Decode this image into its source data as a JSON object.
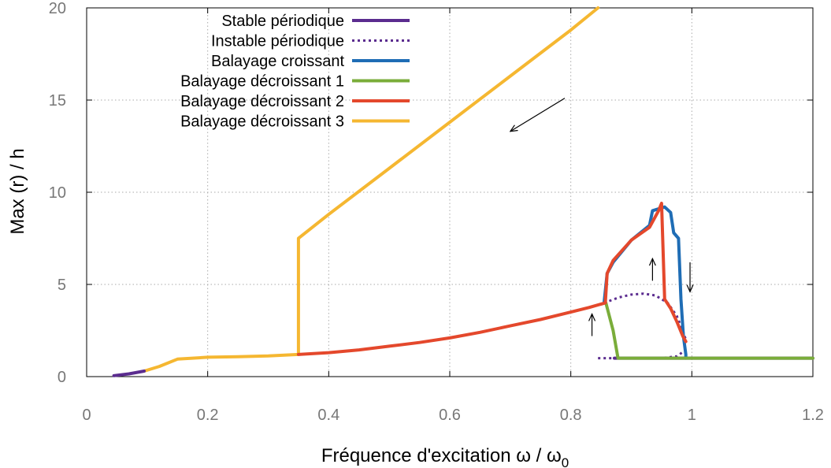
{
  "chart_data": {
    "type": "line",
    "xlabel": "Fréquence d'excitation ω / ω",
    "xlabel_sub": "0",
    "ylabel": "Max (r) / h",
    "xlim": [
      0,
      1.2
    ],
    "ylim": [
      0,
      20
    ],
    "xticks": [
      "0",
      "0.2",
      "0.4",
      "0.6",
      "0.8",
      "1",
      "1.2"
    ],
    "yticks": [
      "0",
      "5",
      "10",
      "15",
      "20"
    ],
    "grid": true,
    "legend_position": "top-left",
    "series": [
      {
        "name": "Stable périodique",
        "color": "#5b2c8f",
        "style": "solid",
        "segments": [
          [
            [
              0.045,
              0.05
            ],
            [
              0.07,
              0.15
            ],
            [
              0.095,
              0.3
            ]
          ],
          [
            [
              0.872,
              1.0
            ],
            [
              1.2,
              1.0
            ]
          ]
        ]
      },
      {
        "name": "Instable périodique",
        "color": "#5b2c8f",
        "style": "dotted",
        "segments": [
          [
            [
              0.855,
              4.0
            ],
            [
              0.88,
              4.3
            ],
            [
              0.9,
              4.45
            ],
            [
              0.92,
              4.5
            ],
            [
              0.94,
              4.4
            ],
            [
              0.96,
              4.0
            ],
            [
              0.975,
              3.3
            ],
            [
              0.985,
              2.5
            ],
            [
              0.99,
              2.0
            ]
          ],
          [
            [
              0.845,
              1.0
            ],
            [
              0.9,
              1.0
            ],
            [
              0.95,
              1.0
            ],
            [
              0.975,
              1.1
            ],
            [
              0.988,
              1.4
            ]
          ]
        ]
      },
      {
        "name": "Balayage croissant",
        "color": "#1f6db5",
        "style": "solid",
        "segments": [
          [
            [
              0.855,
              4.0
            ],
            [
              0.86,
              5.6
            ],
            [
              0.87,
              6.2
            ],
            [
              0.9,
              7.4
            ],
            [
              0.93,
              8.2
            ],
            [
              0.935,
              9.0
            ],
            [
              0.955,
              9.2
            ],
            [
              0.965,
              8.9
            ],
            [
              0.97,
              7.8
            ],
            [
              0.978,
              7.5
            ],
            [
              0.982,
              4.2
            ],
            [
              0.986,
              2.2
            ],
            [
              0.99,
              1.2
            ],
            [
              0.99,
              1.0
            ]
          ]
        ]
      },
      {
        "name": "Balayage décroissant 1",
        "color": "#7aad3a",
        "style": "solid",
        "segments": [
          [
            [
              0.858,
              4.0
            ],
            [
              0.87,
              2.5
            ],
            [
              0.878,
              1.0
            ],
            [
              1.2,
              1.0
            ]
          ]
        ]
      },
      {
        "name": "Balayage décroissant 2",
        "color": "#e4482c",
        "style": "solid",
        "segments": [
          [
            [
              0.35,
              1.2
            ],
            [
              0.4,
              1.3
            ],
            [
              0.45,
              1.45
            ],
            [
              0.5,
              1.65
            ],
            [
              0.55,
              1.85
            ],
            [
              0.6,
              2.1
            ],
            [
              0.65,
              2.4
            ],
            [
              0.7,
              2.75
            ],
            [
              0.75,
              3.1
            ],
            [
              0.8,
              3.5
            ],
            [
              0.83,
              3.75
            ],
            [
              0.857,
              4.0
            ]
          ],
          [
            [
              0.857,
              4.0
            ],
            [
              0.86,
              5.6
            ],
            [
              0.87,
              6.3
            ],
            [
              0.9,
              7.4
            ],
            [
              0.93,
              8.1
            ],
            [
              0.945,
              9.0
            ],
            [
              0.95,
              9.4
            ],
            [
              0.955,
              4.2
            ],
            [
              0.965,
              3.7
            ],
            [
              0.975,
              3.0
            ],
            [
              0.985,
              2.2
            ],
            [
              0.99,
              1.9
            ]
          ]
        ]
      },
      {
        "name": "Balayage décroissant 3",
        "color": "#f5b731",
        "style": "solid",
        "segments": [
          [
            [
              0.095,
              0.3
            ],
            [
              0.12,
              0.55
            ],
            [
              0.15,
              0.95
            ],
            [
              0.2,
              1.05
            ],
            [
              0.25,
              1.08
            ],
            [
              0.3,
              1.12
            ],
            [
              0.35,
              1.2
            ],
            [
              0.35,
              7.5
            ],
            [
              0.4,
              8.8
            ],
            [
              0.5,
              11.3
            ],
            [
              0.6,
              13.8
            ],
            [
              0.7,
              16.3
            ],
            [
              0.8,
              18.8
            ],
            [
              0.845,
              20.0
            ]
          ]
        ]
      }
    ],
    "annotations": [
      {
        "label": "arrow-sweep-down",
        "from": [
          0.79,
          15.1
        ],
        "to": [
          0.7,
          13.3
        ]
      },
      {
        "label": "arrow-up-1",
        "from": [
          0.835,
          2.2
        ],
        "to": [
          0.835,
          3.4
        ]
      },
      {
        "label": "arrow-up-2",
        "from": [
          0.935,
          5.2
        ],
        "to": [
          0.935,
          6.4
        ]
      },
      {
        "label": "arrow-down",
        "from": [
          0.997,
          6.2
        ],
        "to": [
          0.997,
          4.6
        ]
      }
    ]
  }
}
